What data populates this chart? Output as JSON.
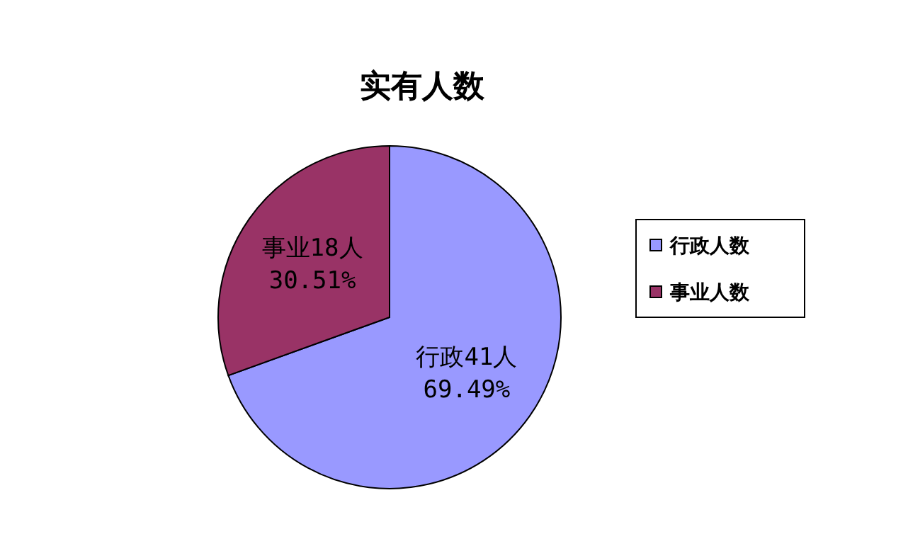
{
  "chart_data": {
    "type": "pie",
    "title": "实有人数",
    "categories": [
      "行政人数",
      "事业人数"
    ],
    "values": [
      41,
      18
    ],
    "colors": [
      "#9999ff",
      "#993366"
    ],
    "value_labels": [
      "行政41人\n69.49%",
      "事业18人\n30.51%"
    ],
    "legend": "right"
  }
}
